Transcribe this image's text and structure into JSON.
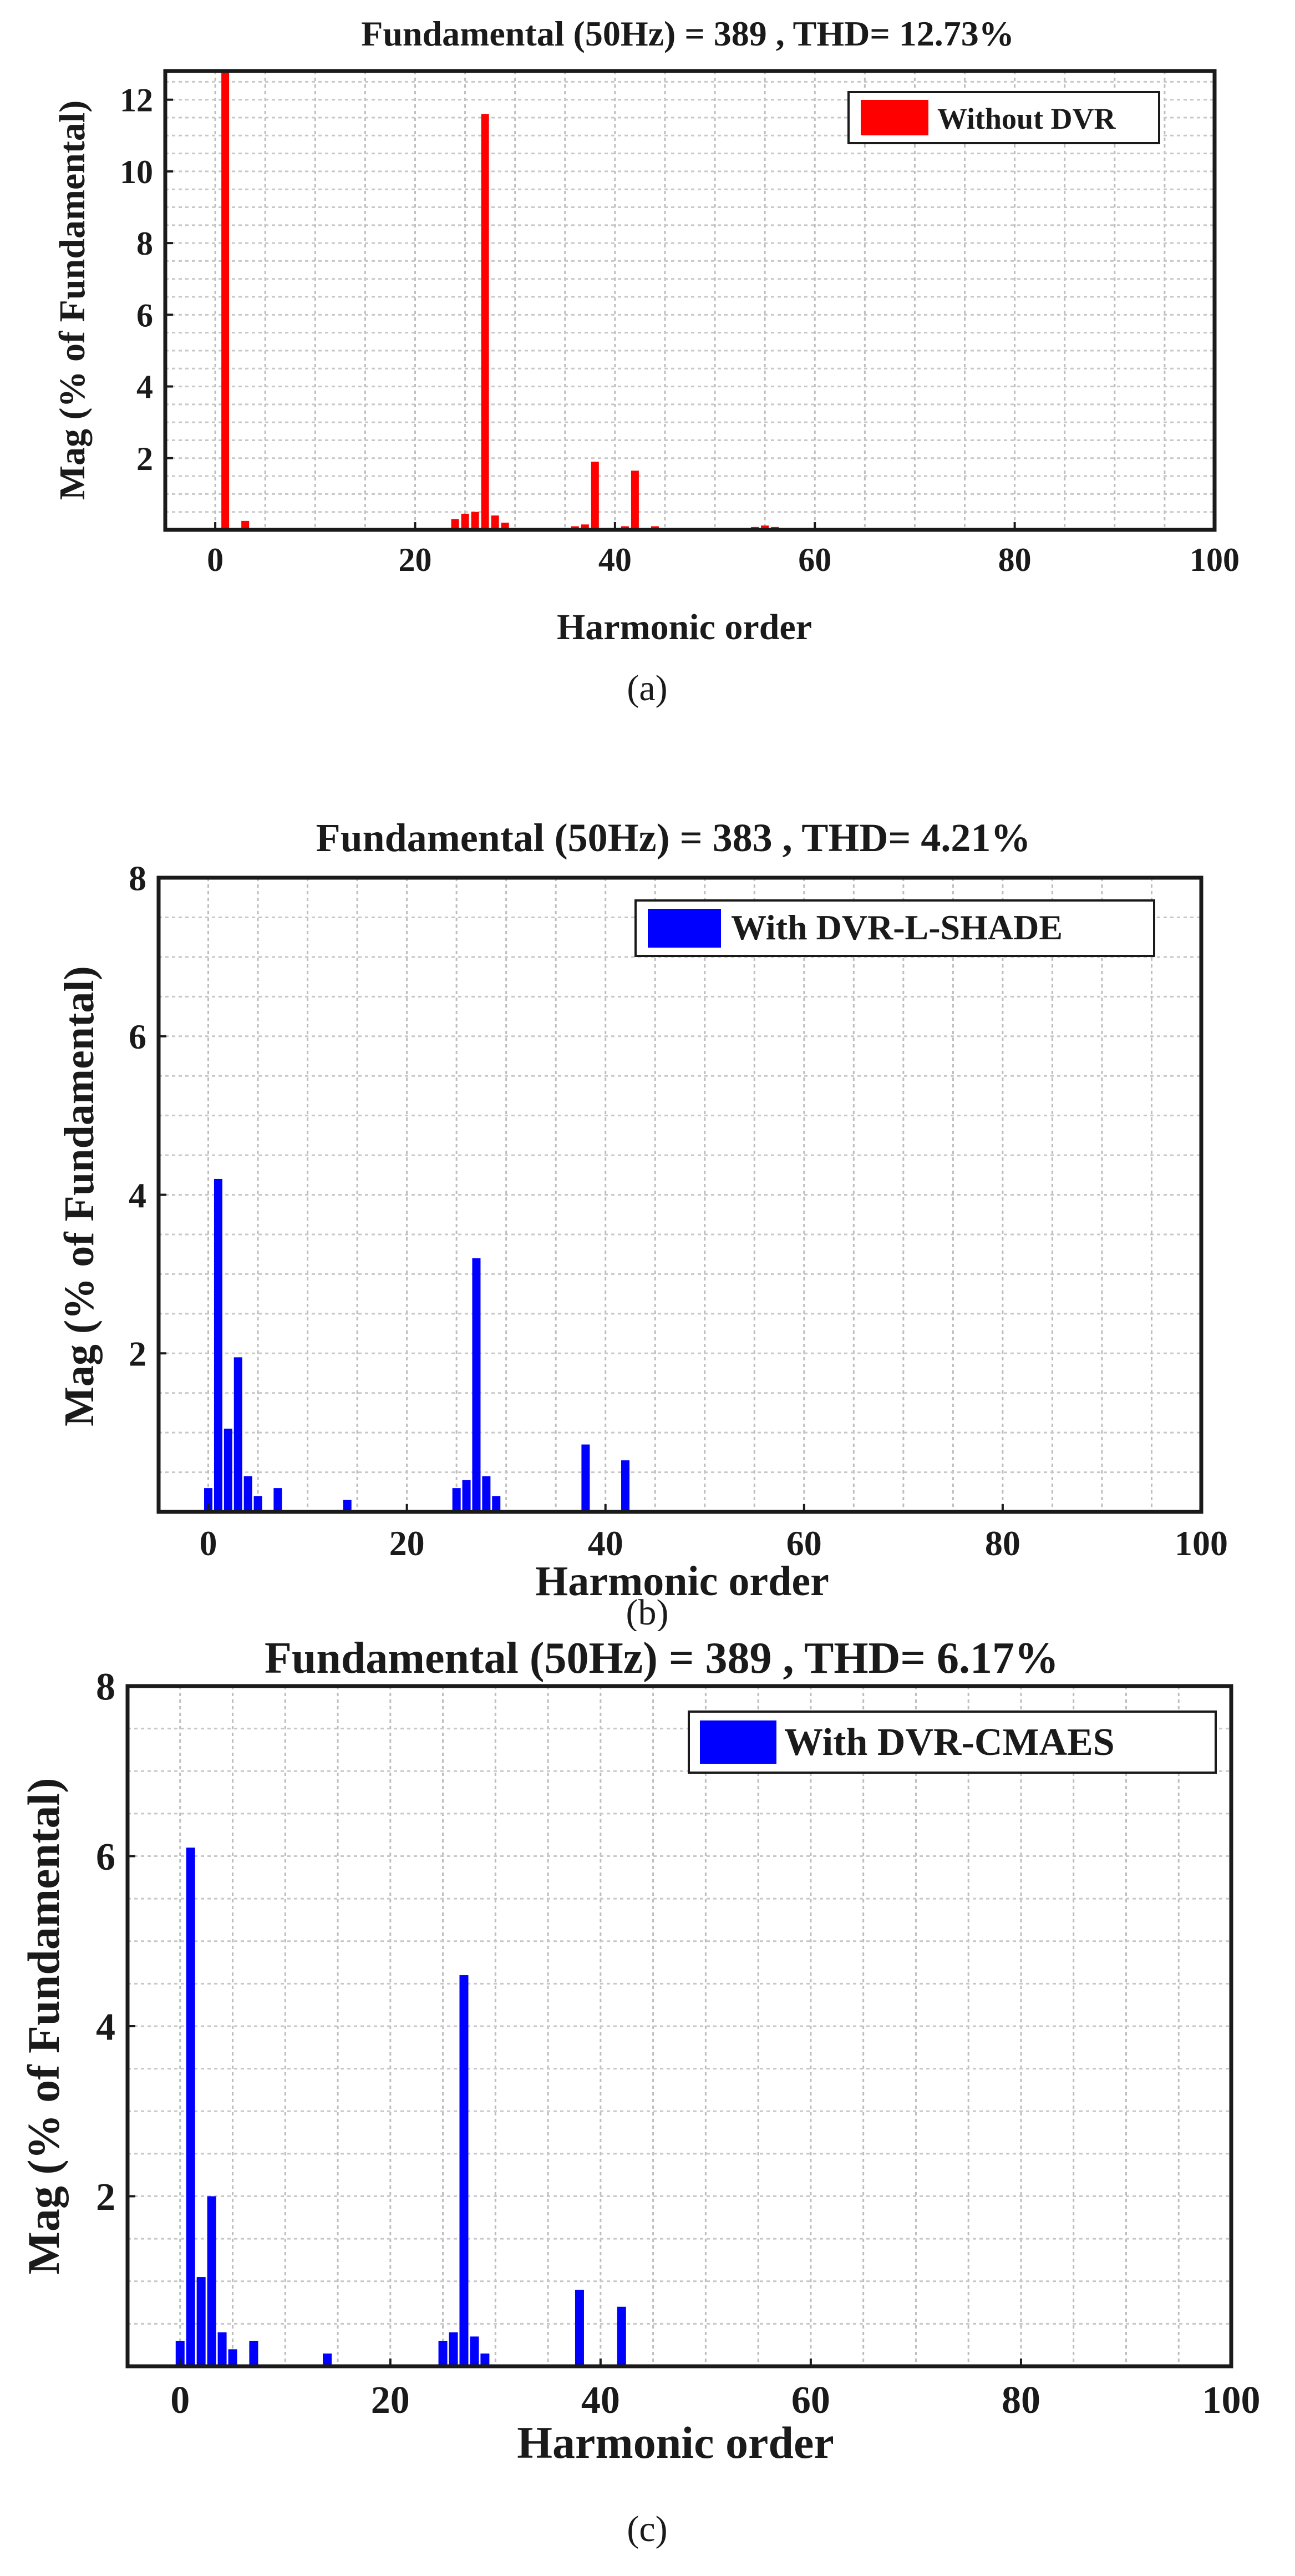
{
  "charts": {
    "a": {
      "title": "Fundamental (50Hz) = 389 , THD= 12.73%",
      "xlabel": "Harmonic order",
      "ylabel": "Mag (% of Fundamental)",
      "caption": "(a)",
      "legend": "Without DVR",
      "color": "#ff0000"
    },
    "b": {
      "title": "Fundamental (50Hz) = 383 , THD= 4.21%",
      "xlabel": "Harmonic order",
      "ylabel": "Mag (% of Fundamental)",
      "caption": "(b)",
      "legend": "With DVR-L-SHADE",
      "color": "#0000ff"
    },
    "c": {
      "title": "Fundamental (50Hz) = 389 , THD= 6.17%",
      "xlabel": "Harmonic order",
      "ylabel": "Mag (% of Fundamental)",
      "caption": "(c)",
      "legend": "With DVR-CMAES",
      "color": "#0000ff"
    }
  },
  "chart_data": [
    {
      "type": "bar",
      "title": "Fundamental (50Hz) = 389 , THD= 12.73%",
      "xlabel": "Harmonic order",
      "ylabel": "Mag (% of Fundamental)",
      "xlim": [
        -5,
        100
      ],
      "ylim": [
        0,
        12.8
      ],
      "xticks": [
        0,
        20,
        40,
        60,
        80,
        100
      ],
      "yticks": [
        2,
        4,
        6,
        8,
        10,
        12
      ],
      "legend_position": "top-right",
      "grid": true,
      "series": [
        {
          "name": "Without DVR",
          "color": "#ff0000",
          "x": [
            0,
            1,
            2,
            3,
            24,
            25,
            26,
            27,
            28,
            29,
            36,
            37,
            38,
            41,
            42,
            44,
            54,
            55,
            56
          ],
          "values": [
            0.05,
            12.8,
            0.05,
            0.25,
            0.3,
            0.45,
            0.5,
            11.6,
            0.4,
            0.2,
            0.1,
            0.15,
            1.9,
            0.1,
            1.65,
            0.1,
            0.08,
            0.12,
            0.08
          ]
        }
      ]
    },
    {
      "type": "bar",
      "title": "Fundamental (50Hz) = 383 , THD= 4.21%",
      "xlabel": "Harmonic order",
      "ylabel": "Mag (% of Fundamental)",
      "xlim": [
        -5,
        100
      ],
      "ylim": [
        0,
        8
      ],
      "xticks": [
        0,
        20,
        40,
        60,
        80,
        100
      ],
      "yticks": [
        2,
        4,
        6,
        8
      ],
      "legend_position": "top-right",
      "grid": true,
      "series": [
        {
          "name": "With DVR-L-SHADE",
          "color": "#0000ff",
          "x": [
            0,
            1,
            2,
            3,
            4,
            5,
            7,
            14,
            25,
            26,
            27,
            28,
            29,
            38,
            42
          ],
          "values": [
            0.3,
            4.2,
            1.05,
            1.95,
            0.45,
            0.2,
            0.3,
            0.15,
            0.3,
            0.4,
            3.2,
            0.45,
            0.2,
            0.85,
            0.65
          ]
        }
      ]
    },
    {
      "type": "bar",
      "title": "Fundamental (50Hz) = 389 , THD= 6.17%",
      "xlabel": "Harmonic order",
      "ylabel": "Mag (% of Fundamental)",
      "xlim": [
        -5,
        100
      ],
      "ylim": [
        0,
        8
      ],
      "xticks": [
        0,
        20,
        40,
        60,
        80,
        100
      ],
      "yticks": [
        2,
        4,
        6,
        8
      ],
      "legend_position": "top-right",
      "grid": true,
      "series": [
        {
          "name": "With DVR-CMAES",
          "color": "#0000ff",
          "x": [
            0,
            1,
            2,
            3,
            4,
            5,
            7,
            14,
            25,
            26,
            27,
            28,
            29,
            38,
            42
          ],
          "values": [
            0.3,
            6.1,
            1.05,
            2.0,
            0.4,
            0.2,
            0.3,
            0.15,
            0.3,
            0.4,
            4.6,
            0.35,
            0.15,
            0.9,
            0.7
          ]
        }
      ]
    }
  ]
}
